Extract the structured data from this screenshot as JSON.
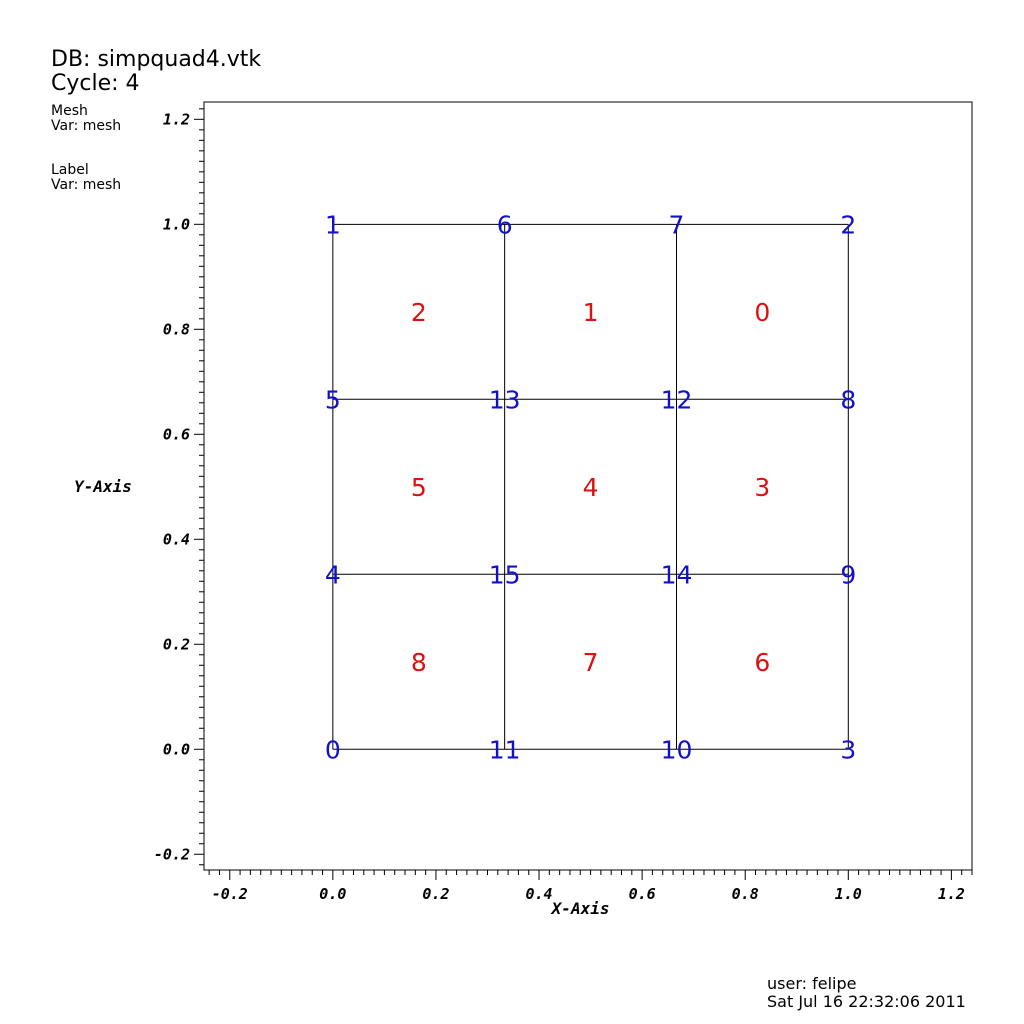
{
  "header": {
    "db": "DB: simpquad4.vtk",
    "cycle": "Cycle: 4",
    "plots": [
      {
        "name": "Mesh",
        "var": "Var: mesh"
      },
      {
        "name": "Label",
        "var": "Var: mesh"
      }
    ]
  },
  "footer": {
    "user": "user: felipe",
    "date": "Sat Jul 16 22:32:06 2011"
  },
  "colors": {
    "node_labels": "#1111cc",
    "cell_labels": "#dd1111",
    "mesh_lines": "#000000"
  },
  "chart_data": {
    "type": "mesh",
    "xlabel": "X-Axis",
    "ylabel": "Y-Axis",
    "xlim": [
      -0.25,
      1.24
    ],
    "ylim": [
      -0.23,
      1.233
    ],
    "xticks": [
      "-0.2",
      "0.0",
      "0.2",
      "0.4",
      "0.6",
      "0.8",
      "1.0",
      "1.2"
    ],
    "yticks": [
      "-0.2",
      "0.0",
      "0.2",
      "0.4",
      "0.6",
      "0.8",
      "1.0",
      "1.2"
    ],
    "grid_x": [
      0,
      0.3333,
      0.6667,
      1.0
    ],
    "grid_y": [
      0,
      0.3333,
      0.6667,
      1.0
    ],
    "nodes": [
      {
        "id": "0",
        "x": 0,
        "y": 0
      },
      {
        "id": "1",
        "x": 0,
        "y": 1.0
      },
      {
        "id": "2",
        "x": 1.0,
        "y": 1.0
      },
      {
        "id": "3",
        "x": 1.0,
        "y": 0
      },
      {
        "id": "4",
        "x": 0,
        "y": 0.3333
      },
      {
        "id": "5",
        "x": 0,
        "y": 0.6667
      },
      {
        "id": "6",
        "x": 0.3333,
        "y": 1.0
      },
      {
        "id": "7",
        "x": 0.6667,
        "y": 1.0
      },
      {
        "id": "8",
        "x": 1.0,
        "y": 0.6667
      },
      {
        "id": "9",
        "x": 1.0,
        "y": 0.3333
      },
      {
        "id": "10",
        "x": 0.6667,
        "y": 0
      },
      {
        "id": "11",
        "x": 0.3333,
        "y": 0
      },
      {
        "id": "12",
        "x": 0.6667,
        "y": 0.6667
      },
      {
        "id": "13",
        "x": 0.3333,
        "y": 0.6667
      },
      {
        "id": "14",
        "x": 0.6667,
        "y": 0.3333
      },
      {
        "id": "15",
        "x": 0.3333,
        "y": 0.3333
      }
    ],
    "cells": [
      {
        "id": "0",
        "x": 0.8333,
        "y": 0.8333
      },
      {
        "id": "1",
        "x": 0.5,
        "y": 0.8333
      },
      {
        "id": "2",
        "x": 0.1667,
        "y": 0.8333
      },
      {
        "id": "3",
        "x": 0.8333,
        "y": 0.5
      },
      {
        "id": "4",
        "x": 0.5,
        "y": 0.5
      },
      {
        "id": "5",
        "x": 0.1667,
        "y": 0.5
      },
      {
        "id": "6",
        "x": 0.8333,
        "y": 0.1667
      },
      {
        "id": "7",
        "x": 0.5,
        "y": 0.1667
      },
      {
        "id": "8",
        "x": 0.1667,
        "y": 0.1667
      }
    ]
  }
}
